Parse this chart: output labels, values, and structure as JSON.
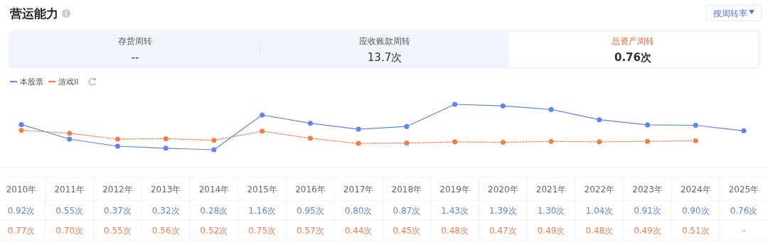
{
  "chart_data": [
    {
      "type": "other",
      "title": "营运能力",
      "annotations": [
        "按周转率",
        "存货周转",
        "--",
        "应收账款周转",
        "13.7次",
        "总资产周转",
        "0.76次"
      ]
    },
    {
      "type": "line",
      "categories": [
        "2010年",
        "2011年",
        "2012年",
        "2013年",
        "2014年",
        "2015年",
        "2016年",
        "2017年",
        "2018年",
        "2019年",
        "2020年",
        "2021年",
        "2022年",
        "2023年",
        "2024年",
        "2025年"
      ],
      "series": [
        {
          "name": "本股票",
          "color": "#6083ec",
          "line_style": "solid",
          "values": [
            0.92,
            0.55,
            0.37,
            0.32,
            0.28,
            1.16,
            0.95,
            0.8,
            0.87,
            1.43,
            1.39,
            1.3,
            1.04,
            0.91,
            0.9,
            0.76
          ],
          "value_labels": [
            "0.92次",
            "0.55次",
            "0.37次",
            "0.32次",
            "0.28次",
            "1.16次",
            "0.95次",
            "0.80次",
            "0.87次",
            "1.43次",
            "1.39次",
            "1.30次",
            "1.04次",
            "0.91次",
            "0.90次",
            "0.76次"
          ]
        },
        {
          "name": "游戏II",
          "color": "#f47c50",
          "line_style": "dotted",
          "values": [
            0.77,
            0.7,
            0.55,
            0.56,
            0.52,
            0.75,
            0.57,
            0.44,
            0.45,
            0.48,
            0.47,
            0.49,
            0.48,
            0.49,
            0.51,
            null
          ],
          "value_labels": [
            "0.77次",
            "0.70次",
            "0.55次",
            "0.56次",
            "0.52次",
            "0.75次",
            "0.57次",
            "0.44次",
            "0.45次",
            "0.48次",
            "0.47次",
            "0.49次",
            "0.48次",
            "0.49次",
            "0.51次",
            "-"
          ]
        }
      ],
      "marker": "circle",
      "legend": "top left"
    }
  ]
}
